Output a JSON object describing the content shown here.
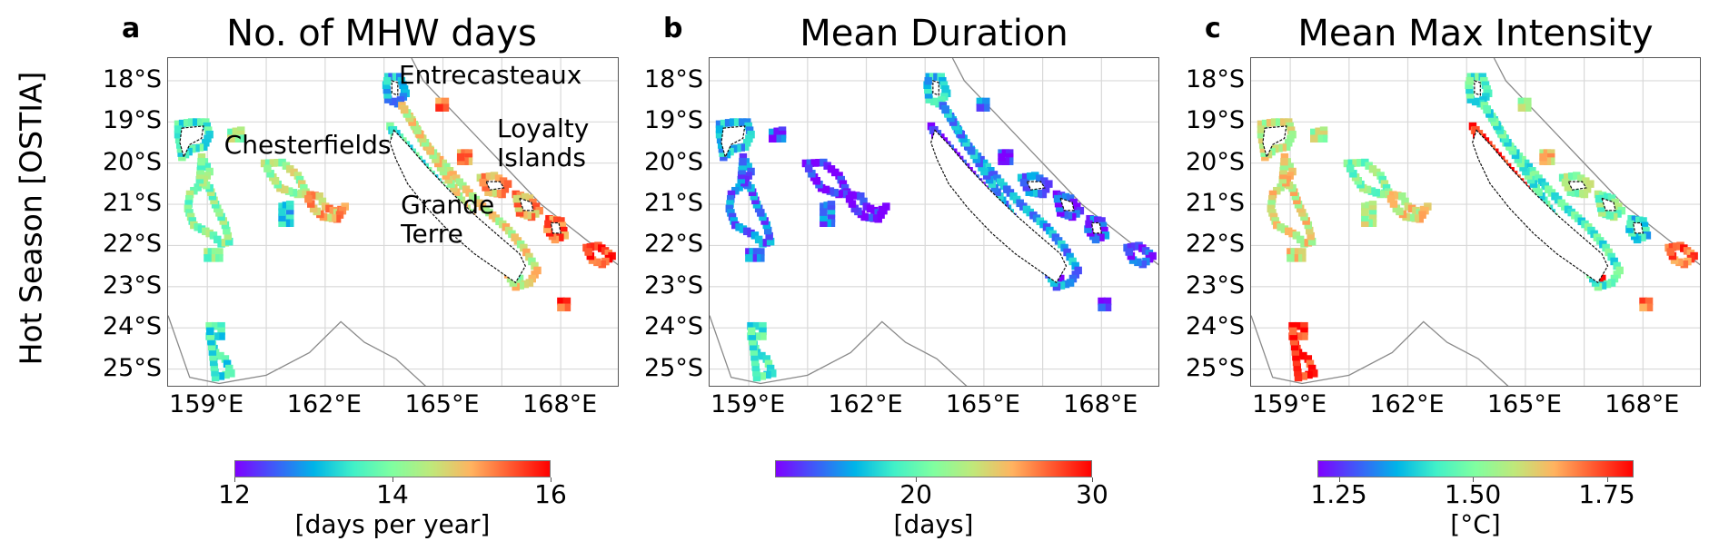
{
  "row_label": "Hot Season [OSTIA]",
  "colormap": [
    "#7f00ff",
    "#3e5cf8",
    "#00b4e8",
    "#41f0c8",
    "#80ffa0",
    "#c0e87a",
    "#ffb360",
    "#ff5a30",
    "#ff0000"
  ],
  "chart_data": [
    {
      "type": "heatmap",
      "panel_letter": "a",
      "title": "No. of MHW days",
      "xlabel": "",
      "ylabel": "",
      "x_ticks": [
        159,
        162,
        165,
        168
      ],
      "x_tick_labels": [
        "159°E",
        "162°E",
        "165°E",
        "168°E"
      ],
      "y_ticks": [
        18,
        19,
        20,
        21,
        22,
        23,
        24,
        25
      ],
      "y_tick_labels": [
        "18°S",
        "19°S",
        "20°S",
        "21°S",
        "22°S",
        "23°S",
        "24°S",
        "25°S"
      ],
      "lon_range": [
        158.0,
        169.5
      ],
      "lat_range": [
        17.45,
        25.45
      ],
      "grid": true,
      "colorbar": {
        "vmin": 12,
        "vmax": 16,
        "ticks": [
          12,
          14,
          16
        ],
        "tick_labels": [
          "12",
          "14",
          "16"
        ],
        "label": "[days per year]"
      },
      "annotations": [
        {
          "text": "Entrecasteaux",
          "lon": 163.9,
          "lat": 17.85
        },
        {
          "text": "Chesterfields",
          "lon": 159.45,
          "lat": 19.55
        },
        {
          "text": "Loyalty\nIslands",
          "lon": 166.4,
          "lat": 19.15
        },
        {
          "text": "Grande\nTerre",
          "lon": 163.95,
          "lat": 21.0
        }
      ],
      "region_values": {
        "chesterfields_north": 13.6,
        "chesterfields_south": 14.0,
        "bellona": 14.2,
        "lansdowne": 14.3,
        "fairway": 15.0,
        "kenn_south": 13.2,
        "entrecasteaux": 13.0,
        "grande_terre_west": 13.6,
        "grande_terre_east": 14.6,
        "loyalty_ouvea": 15.0,
        "loyalty_lifou": 15.1,
        "loyalty_mare": 15.4,
        "walpole": 15.6,
        "hunter_matthew": 15.7,
        "south_reef": 13.5,
        "astrolabe": 15.2,
        "huon_surprise": 15.4
      }
    },
    {
      "type": "heatmap",
      "panel_letter": "b",
      "title": "Mean Duration",
      "xlabel": "",
      "ylabel": "",
      "x_ticks": [
        159,
        162,
        165,
        168
      ],
      "x_tick_labels": [
        "159°E",
        "162°E",
        "165°E",
        "168°E"
      ],
      "y_ticks": [
        18,
        19,
        20,
        21,
        22,
        23,
        24,
        25
      ],
      "y_tick_labels": [
        "18°S",
        "19°S",
        "20°S",
        "21°S",
        "22°S",
        "23°S",
        "24°S",
        "25°S"
      ],
      "lon_range": [
        158.0,
        169.5
      ],
      "lat_range": [
        17.45,
        25.45
      ],
      "grid": true,
      "colorbar": {
        "vmin": 12,
        "vmax": 30,
        "ticks": [
          20,
          30
        ],
        "tick_labels": [
          "20",
          "30"
        ],
        "label": "[days]"
      },
      "annotations": [],
      "region_values": {
        "chesterfields_north": 16.5,
        "chesterfields_south": 15.0,
        "bellona": 14.0,
        "lansdowne": 12.5,
        "fairway": 12.3,
        "kenn_south": 15.0,
        "entrecasteaux": 17.5,
        "grande_terre_west": 12.5,
        "grande_terre_east": 16.0,
        "loyalty_ouvea": 15.5,
        "loyalty_lifou": 13.5,
        "loyalty_mare": 14.0,
        "walpole": 13.0,
        "hunter_matthew": 13.5,
        "south_reef": 19.0,
        "astrolabe": 13.0,
        "huon_surprise": 15.0
      }
    },
    {
      "type": "heatmap",
      "panel_letter": "c",
      "title": "Mean Max Intensity",
      "xlabel": "",
      "ylabel": "",
      "x_ticks": [
        159,
        162,
        165,
        168
      ],
      "x_tick_labels": [
        "159°E",
        "162°E",
        "165°E",
        "168°E"
      ],
      "y_ticks": [
        18,
        19,
        20,
        21,
        22,
        23,
        24,
        25
      ],
      "y_tick_labels": [
        "18°S",
        "19°S",
        "20°S",
        "21°S",
        "22°S",
        "23°S",
        "24°S",
        "25°S"
      ],
      "lon_range": [
        158.0,
        169.5
      ],
      "lat_range": [
        17.45,
        25.45
      ],
      "grid": true,
      "colorbar": {
        "vmin": 1.21,
        "vmax": 1.8,
        "ticks": [
          1.25,
          1.5,
          1.75
        ],
        "tick_labels": [
          "1.25",
          "1.50",
          "1.75"
        ],
        "label": "[°C]"
      },
      "annotations": [],
      "region_values": {
        "chesterfields_north": 1.58,
        "chesterfields_south": 1.6,
        "bellona": 1.55,
        "lansdowne": 1.5,
        "fairway": 1.6,
        "kenn_south": 1.55,
        "entrecasteaux": 1.45,
        "grande_terre_west": 1.78,
        "grande_terre_east": 1.45,
        "loyalty_ouvea": 1.52,
        "loyalty_lifou": 1.5,
        "loyalty_mare": 1.4,
        "walpole": 1.7,
        "hunter_matthew": 1.72,
        "south_reef": 1.77,
        "astrolabe": 1.62,
        "huon_surprise": 1.55
      }
    }
  ]
}
